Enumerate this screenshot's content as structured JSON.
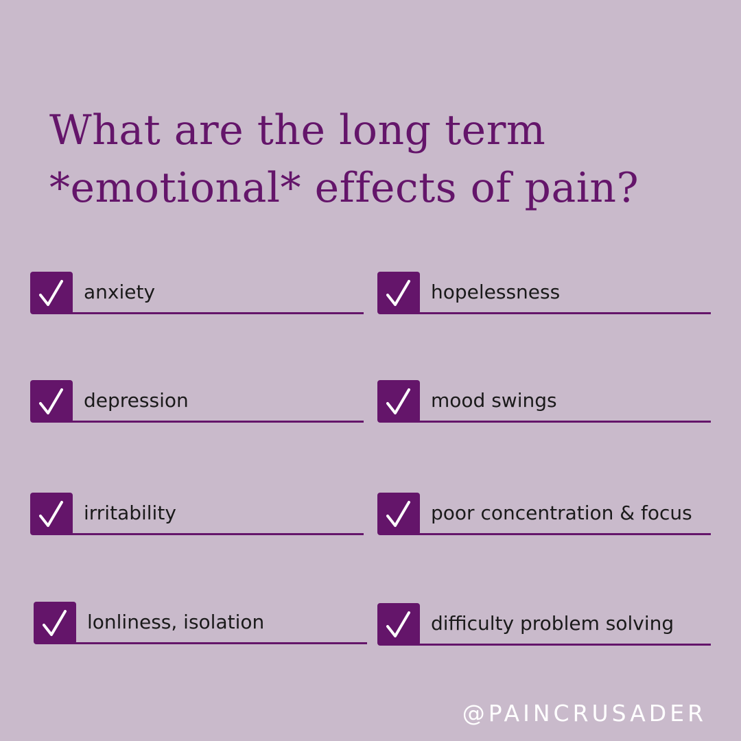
{
  "title": {
    "line1": "What are the long term",
    "line2": "*emotional* effects of pain?"
  },
  "colors": {
    "background": "#c9bacb",
    "accent": "#64156a",
    "text": "#1a1a1a",
    "handle": "#ffffff"
  },
  "items": [
    {
      "label": "anxiety",
      "checked": true,
      "icon": "checkmark-icon"
    },
    {
      "label": "hopelessness",
      "checked": true,
      "icon": "checkmark-icon"
    },
    {
      "label": "depression",
      "checked": true,
      "icon": "checkmark-icon"
    },
    {
      "label": "mood swings",
      "checked": true,
      "icon": "checkmark-icon"
    },
    {
      "label": "irritability",
      "checked": true,
      "icon": "checkmark-icon"
    },
    {
      "label": "poor concentration & focus",
      "checked": true,
      "icon": "checkmark-icon"
    },
    {
      "label": "lonliness, isolation",
      "checked": true,
      "icon": "checkmark-icon"
    },
    {
      "label": "difficulty problem solving",
      "checked": true,
      "icon": "checkmark-icon"
    }
  ],
  "handle": "@PAINCRUSADER"
}
